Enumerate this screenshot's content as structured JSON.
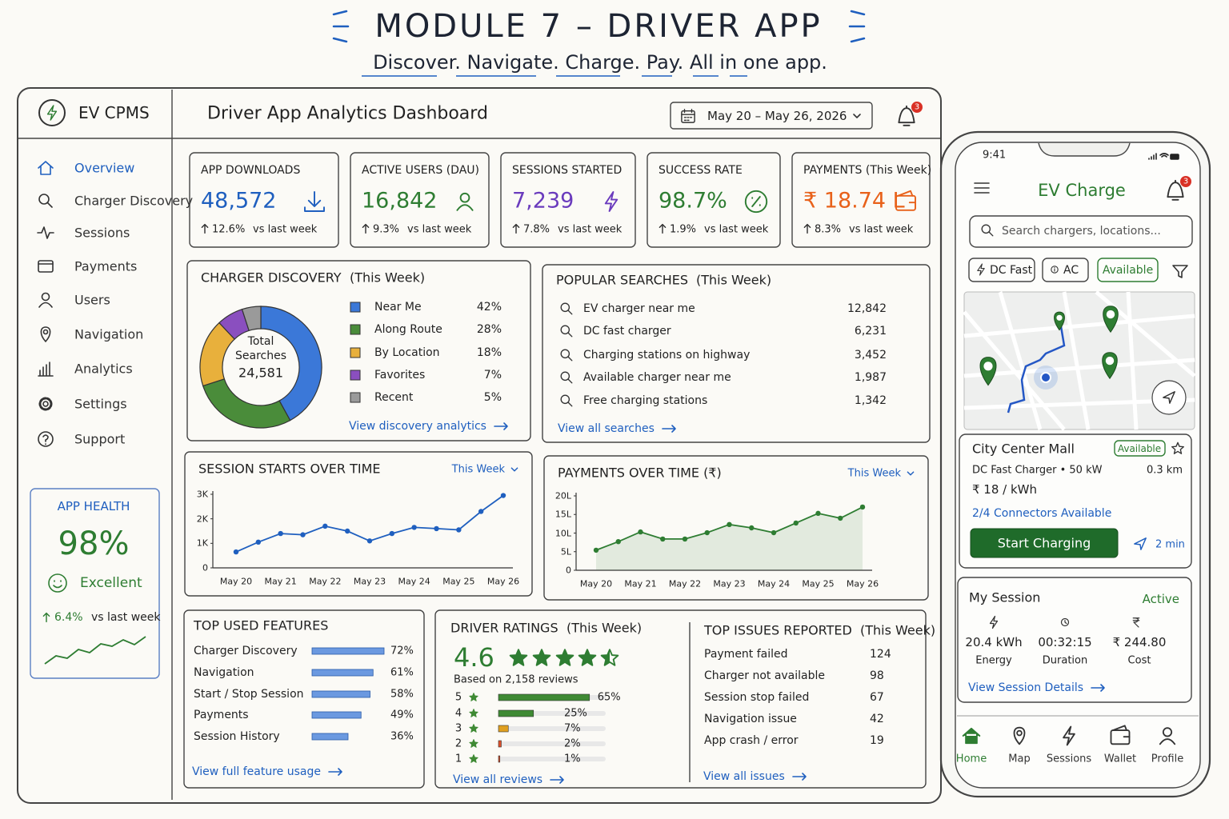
{
  "header": {
    "title": "MODULE 7 – DRIVER APP",
    "tagline": "Discover. Navigate. Charge. Pay. All in one app."
  },
  "sidebar": {
    "brand": "EV CPMS",
    "nav": [
      "Overview",
      "Charger Discovery",
      "Sessions",
      "Payments",
      "Users",
      "Navigation",
      "Analytics",
      "Settings",
      "Support"
    ],
    "health": {
      "title": "APP HEALTH",
      "value": "98%",
      "status": "Excellent",
      "change": "6.4%",
      "note": "vs last week"
    }
  },
  "dashboard": {
    "title": "Driver App Analytics Dashboard",
    "date_range": "May 20 – May 26, 2026",
    "notifications": "3",
    "kpis": [
      {
        "label": "APP DOWNLOADS",
        "value": "48,572",
        "change": "12.6%",
        "note": "vs last week",
        "color": "#1f5fbf"
      },
      {
        "label": "ACTIVE USERS (DAU)",
        "value": "16,842",
        "change": "9.3%",
        "note": "vs last week",
        "color": "#2e7d32"
      },
      {
        "label": "SESSIONS STARTED",
        "value": "7,239",
        "change": "7.8%",
        "note": "vs last week",
        "color": "#6a3bbd"
      },
      {
        "label": "SUCCESS RATE",
        "value": "98.7%",
        "change": "1.9%",
        "note": "vs last week",
        "color": "#2e7d32"
      },
      {
        "label": "PAYMENTS (This Week)",
        "value": "₹ 18.74 L",
        "change": "8.3%",
        "note": "vs last week",
        "color": "#e8611a"
      }
    ],
    "discovery": {
      "type": "pie",
      "title": "CHARGER DISCOVERY",
      "subtitle": "(This Week)",
      "center_label": "Total Searches",
      "center_value": "24,581",
      "categories": [
        "Near Me",
        "Along Route",
        "By Location",
        "Favorites",
        "Recent"
      ],
      "values": [
        42,
        28,
        18,
        7,
        5
      ],
      "value_labels": [
        "42%",
        "28%",
        "18%",
        "7%",
        "5%"
      ],
      "colors": [
        "#3b78d8",
        "#4a8c3a",
        "#e8b03c",
        "#8a4fbf",
        "#9a9a9a"
      ],
      "link": "View discovery analytics"
    },
    "popular_searches": {
      "title": "POPULAR SEARCHES",
      "subtitle": "(This Week)",
      "rows": [
        {
          "query": "EV charger near me",
          "count": "12,842"
        },
        {
          "query": "DC fast charger",
          "count": "6,231"
        },
        {
          "query": "Charging stations on highway",
          "count": "3,452"
        },
        {
          "query": "Available charger near me",
          "count": "1,987"
        },
        {
          "query": "Free charging stations",
          "count": "1,342"
        }
      ],
      "link": "View all searches"
    },
    "session_starts": {
      "type": "line",
      "title": "SESSION STARTS OVER TIME",
      "filter": "This Week",
      "color": "#1f5fbf",
      "area": false,
      "categories": [
        "May 20",
        null,
        "May 21",
        null,
        "May 22",
        null,
        "May 23",
        null,
        "May 24",
        null,
        "May 25",
        null,
        "May 26"
      ],
      "values": [
        650,
        1050,
        1400,
        1350,
        1700,
        1500,
        1100,
        1400,
        1650,
        1600,
        1550,
        2300,
        2950
      ],
      "ylim": [
        0,
        3000
      ],
      "yticks": [
        0,
        {
          "value": 1000,
          "label": "1K"
        },
        {
          "value": 2000,
          "label": "2K"
        },
        {
          "value": 3000,
          "label": "3K"
        }
      ]
    },
    "payments": {
      "type": "line",
      "title": "PAYMENTS OVER TIME (₹)",
      "filter": "This Week",
      "color": "#2e7d32",
      "area": true,
      "categories": [
        "May 20",
        null,
        "May 21",
        null,
        "May 22",
        null,
        "May 23",
        null,
        "May 24",
        null,
        "May 25",
        null,
        "May 26"
      ],
      "values": [
        5.4,
        7.7,
        10.3,
        8.4,
        8.4,
        10.1,
        12.3,
        11.4,
        10.1,
        12.7,
        15.3,
        14.0,
        17.0
      ],
      "ylim": [
        0,
        20
      ],
      "yticks": [
        0,
        {
          "value": 5,
          "label": "5L"
        },
        {
          "value": 10,
          "label": "10L"
        },
        {
          "value": 15,
          "label": "15L"
        },
        {
          "value": 20,
          "label": "20L"
        }
      ]
    },
    "features": {
      "type": "bar",
      "title": "TOP USED FEATURES",
      "color": "#3b78d8",
      "categories": [
        "Charger Discovery",
        "Navigation",
        "Start / Stop Session",
        "Payments",
        "Session History"
      ],
      "values": [
        72,
        61,
        58,
        49,
        36
      ],
      "value_labels": [
        "72%",
        "61%",
        "58%",
        "49%",
        "36%"
      ],
      "link": "View full feature usage"
    },
    "ratings": {
      "type": "bar",
      "title": "DRIVER RATINGS",
      "subtitle": "(This Week)",
      "score": "4.6",
      "based_on": "Based on 2,158 reviews",
      "categories": [
        "5",
        "4",
        "3",
        "2",
        "1"
      ],
      "values": [
        65,
        25,
        7,
        2,
        1
      ],
      "value_labels": [
        "65%",
        "25%",
        "7%",
        "2%",
        "1%"
      ],
      "colors": [
        "#3f8a34",
        "#3f8a34",
        "#e0a020",
        "#e0502a",
        "#e0502a"
      ],
      "link": "View all reviews"
    },
    "issues": {
      "title": "TOP ISSUES REPORTED",
      "subtitle": "(This Week)",
      "rows": [
        {
          "issue": "Payment failed",
          "count": "124"
        },
        {
          "issue": "Charger not available",
          "count": "98"
        },
        {
          "issue": "Session stop failed",
          "count": "67"
        },
        {
          "issue": "Navigation issue",
          "count": "42"
        },
        {
          "issue": "App crash / error",
          "count": "19"
        }
      ],
      "link": "View all issues"
    }
  },
  "phone": {
    "time": "9:41",
    "title": "EV Charge",
    "notifications": "3",
    "search_placeholder": "Search chargers, locations...",
    "filters": [
      "DC Fast",
      "AC",
      "Available"
    ],
    "station": {
      "name": "City Center Mall",
      "status": "Available",
      "type": "DC Fast Charger • 50 kW",
      "distance": "0.3 km",
      "price": "₹ 18 / kWh",
      "connectors": "2/4 Connectors Available",
      "action": "Start Charging",
      "eta": "2 min"
    },
    "session": {
      "title": "My Session",
      "status": "Active",
      "stats": [
        {
          "value": "20.4 kWh",
          "label": "Energy"
        },
        {
          "value": "00:32:15",
          "label": "Duration"
        },
        {
          "value": "₹ 244.80",
          "label": "Cost"
        }
      ],
      "link": "View Session Details"
    },
    "tabs": [
      "Home",
      "Map",
      "Sessions",
      "Wallet",
      "Profile"
    ]
  }
}
